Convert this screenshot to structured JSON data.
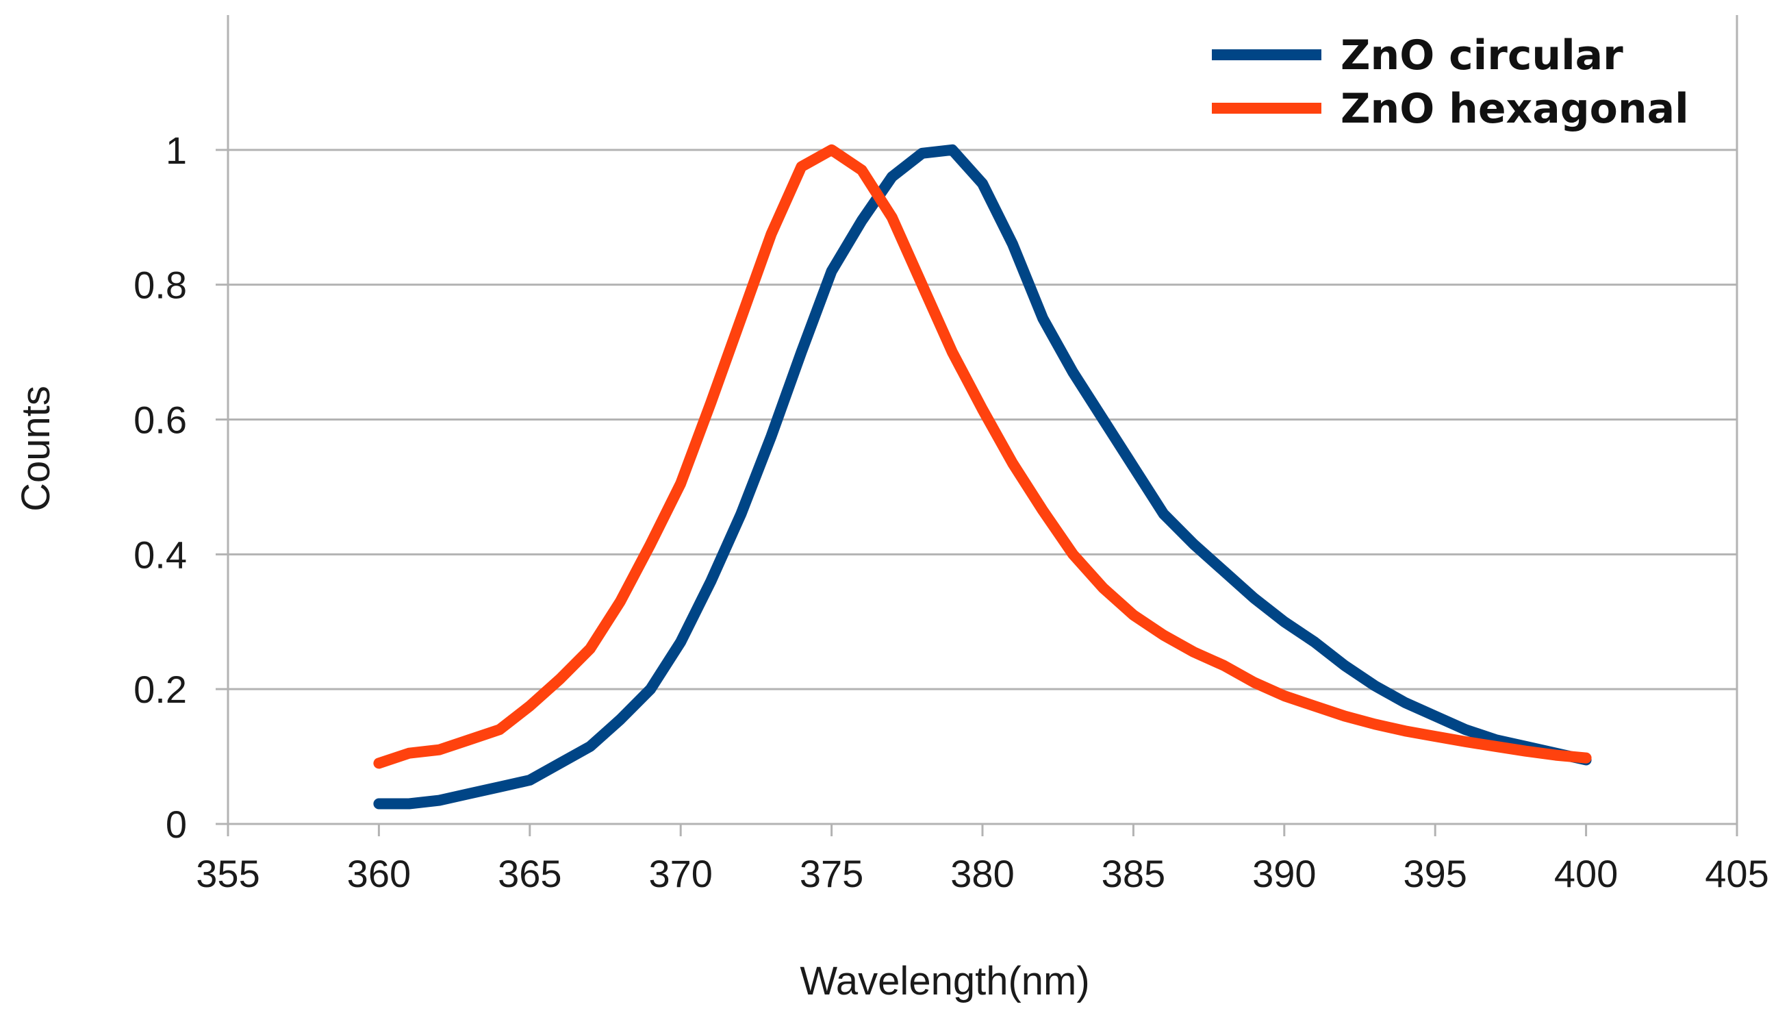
{
  "chart_data": {
    "type": "line",
    "title": "",
    "xlabel": "Wavelength(nm)",
    "ylabel": "Counts",
    "xlim": [
      355,
      405
    ],
    "ylim": [
      0,
      1.2
    ],
    "xticks": [
      355,
      360,
      365,
      370,
      375,
      380,
      385,
      390,
      395,
      400,
      405
    ],
    "yticks": [
      0,
      0.2,
      0.4,
      0.6,
      0.8,
      1
    ],
    "xtick_labels": [
      "355",
      "360",
      "365",
      "370",
      "375",
      "380",
      "385",
      "390",
      "395",
      "400",
      "405"
    ],
    "ytick_labels": [
      "0",
      "0.2",
      "0.4",
      "0.6",
      "0.8",
      "1"
    ],
    "grid": true,
    "legend_position": "top-right",
    "series": [
      {
        "name": "ZnO circular",
        "color": "#004586",
        "x": [
          360,
          361,
          362,
          363,
          364,
          365,
          366,
          367,
          368,
          369,
          370,
          371,
          372,
          373,
          374,
          375,
          376,
          377,
          378,
          379,
          380,
          381,
          382,
          383,
          384,
          385,
          386,
          387,
          388,
          389,
          390,
          391,
          392,
          393,
          394,
          395,
          396,
          397,
          398,
          399,
          400
        ],
        "y": [
          0.03,
          0.03,
          0.035,
          0.045,
          0.055,
          0.065,
          0.09,
          0.115,
          0.155,
          0.2,
          0.27,
          0.36,
          0.46,
          0.575,
          0.7,
          0.82,
          0.895,
          0.96,
          0.995,
          1.0,
          0.95,
          0.86,
          0.75,
          0.67,
          0.6,
          0.53,
          0.46,
          0.415,
          0.375,
          0.335,
          0.3,
          0.27,
          0.235,
          0.205,
          0.18,
          0.16,
          0.14,
          0.125,
          0.115,
          0.105,
          0.095
        ]
      },
      {
        "name": "ZnO hexagonal",
        "color": "#ff420e",
        "x": [
          360,
          361,
          362,
          363,
          364,
          365,
          366,
          367,
          368,
          369,
          370,
          371,
          372,
          373,
          374,
          375,
          376,
          377,
          378,
          379,
          380,
          381,
          382,
          383,
          384,
          385,
          386,
          387,
          388,
          389,
          390,
          391,
          392,
          393,
          394,
          395,
          396,
          397,
          398,
          399,
          400
        ],
        "y": [
          0.09,
          0.105,
          0.11,
          0.125,
          0.14,
          0.175,
          0.215,
          0.26,
          0.33,
          0.415,
          0.505,
          0.625,
          0.75,
          0.875,
          0.975,
          1.0,
          0.97,
          0.9,
          0.8,
          0.7,
          0.615,
          0.535,
          0.465,
          0.4,
          0.35,
          0.31,
          0.28,
          0.255,
          0.235,
          0.21,
          0.19,
          0.175,
          0.16,
          0.148,
          0.138,
          0.13,
          0.122,
          0.115,
          0.108,
          0.102,
          0.098
        ]
      }
    ]
  }
}
